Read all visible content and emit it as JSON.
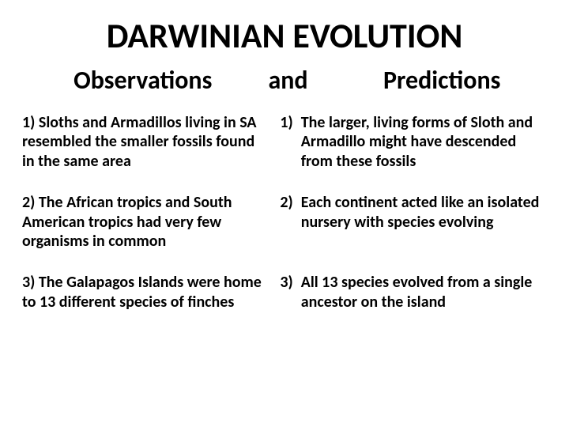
{
  "title": "DARWINIAN EVOLUTION",
  "subhead": {
    "left": "Observations",
    "mid": "and",
    "right": "Predictions"
  },
  "rows": [
    {
      "obs": "1) Sloths and Armadillos living in SA resembled the smaller fossils found in the same area",
      "pred_num": "1)",
      "pred_text": "The larger, living forms of Sloth and Armadillo  might have descended from these fossils"
    },
    {
      "obs": "2) The African tropics and South American tropics had very few organisms in common",
      "pred_num": "2)",
      "pred_text": "Each continent acted like an isolated nursery with species evolving"
    },
    {
      "obs": "3) The Galapagos Islands  were home to 13 different species of finches",
      "pred_num": "3)",
      "pred_text": "All 13 species evolved from a single ancestor on the island"
    }
  ],
  "style": {
    "background_color": "#ffffff",
    "text_color": "#000000",
    "title_fontsize": 44,
    "subhead_fontsize": 32,
    "body_fontsize": 20,
    "font_weight": 700,
    "font_family": "Calibri"
  }
}
